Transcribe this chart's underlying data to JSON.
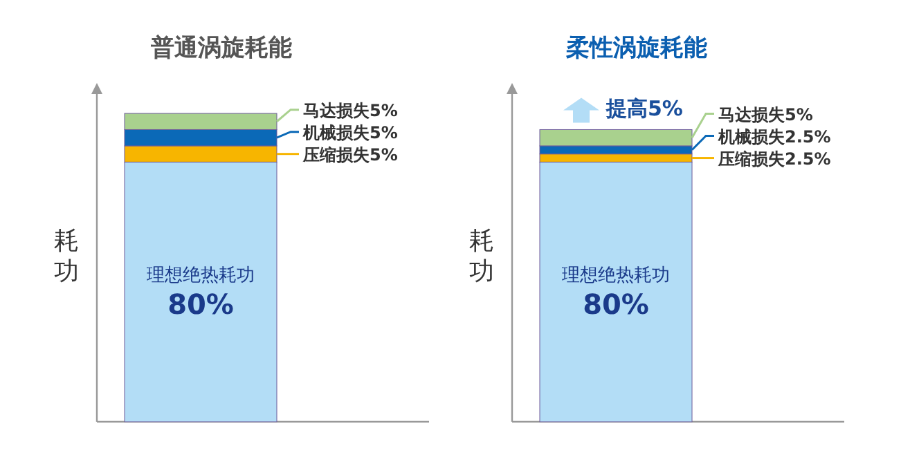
{
  "chart_data": [
    {
      "type": "bar",
      "title": "普通涡旋耗能",
      "ylabel": "耗功",
      "stacked": true,
      "categories": [
        null
      ],
      "series": [
        {
          "name": "理想绝热耗功",
          "color": "#b3ddf6",
          "values": [
            80
          ],
          "value_labels": [
            "80%"
          ]
        },
        {
          "color": "#f7b500",
          "values": [
            5
          ],
          "value_labels": [
            "压缩损失5%"
          ]
        },
        {
          "color": "#0b69b7",
          "values": [
            5
          ],
          "value_labels": [
            "机械损失5%"
          ]
        },
        {
          "color": "#a9d18e",
          "values": [
            5
          ],
          "value_labels": [
            "马达损失5%"
          ]
        }
      ]
    },
    {
      "type": "bar",
      "title": "柔性涡旋耗能",
      "ylabel": "耗功",
      "stacked": true,
      "categories": [
        null
      ],
      "annotations": [
        "提高5%"
      ],
      "series": [
        {
          "name": "理想绝热耗功",
          "color": "#b3ddf6",
          "values": [
            80
          ],
          "value_labels": [
            "80%"
          ]
        },
        {
          "color": "#f7b500",
          "values": [
            2.5
          ],
          "value_labels": [
            "压缩损失2.5%"
          ]
        },
        {
          "color": "#0b69b7",
          "values": [
            2.5
          ],
          "value_labels": [
            "机械损失2.5%"
          ]
        },
        {
          "color": "#a9d18e",
          "values": [
            5
          ],
          "value_labels": [
            "马达损失5%"
          ]
        }
      ]
    }
  ]
}
